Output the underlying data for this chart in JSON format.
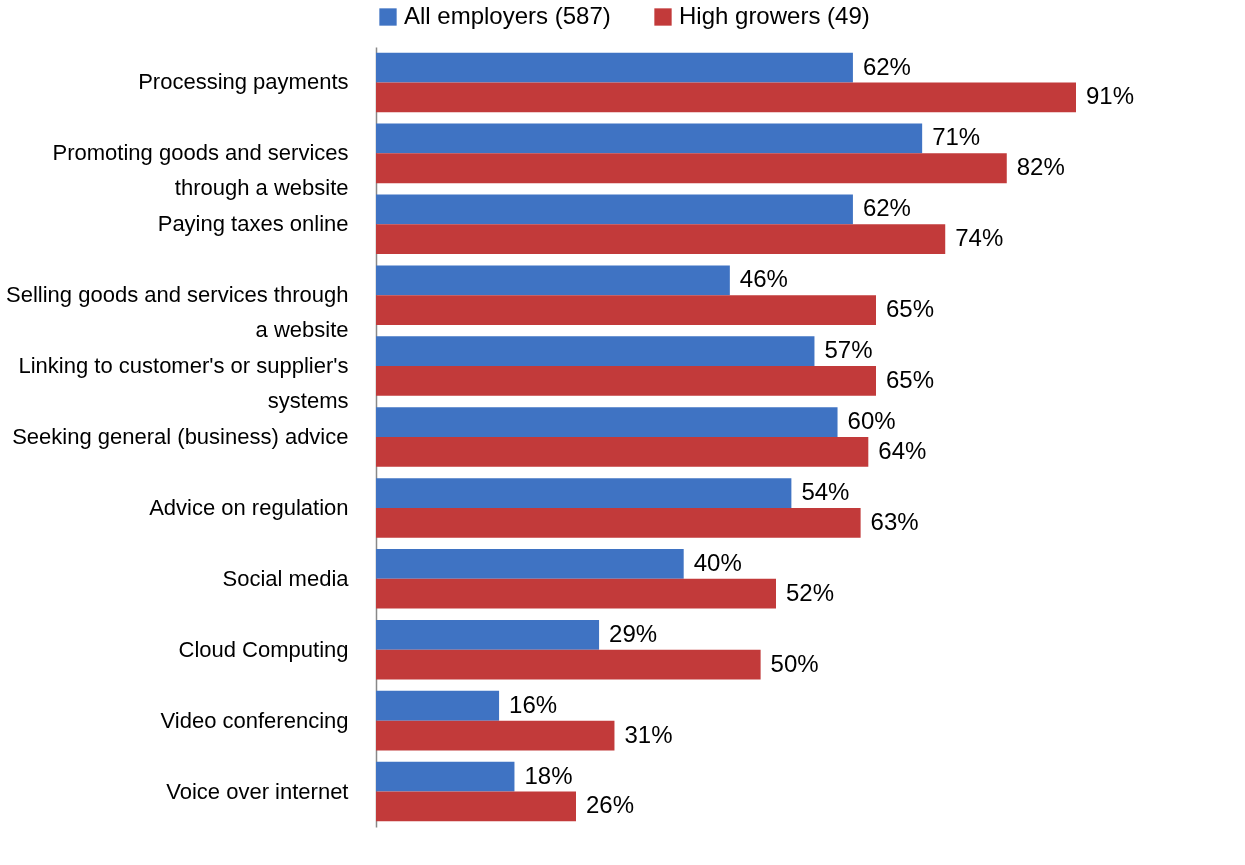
{
  "chart_data": {
    "type": "bar",
    "orientation": "horizontal",
    "legend": "top",
    "categories": [
      "Processing payments",
      "Promoting goods and services through a website",
      "Paying taxes online",
      "Selling goods and services through a website",
      "Linking to customer's or supplier's systems",
      "Seeking general (business) advice",
      "Advice on regulation",
      "Social media",
      "Cloud Computing",
      "Video conferencing",
      "Voice over internet"
    ],
    "series": [
      {
        "name": "All employers (587)",
        "color": "#3f73c3",
        "values": [
          62,
          71,
          62,
          46,
          57,
          60,
          54,
          40,
          29,
          16,
          18
        ],
        "value_labels": [
          "62%",
          "71%",
          "62%",
          "46%",
          "57%",
          "60%",
          "54%",
          "40%",
          "29%",
          "16%",
          "18%"
        ]
      },
      {
        "name": "High growers (49)",
        "color": "#c23a3a",
        "values": [
          91,
          82,
          74,
          65,
          65,
          64,
          63,
          52,
          50,
          31,
          26
        ],
        "value_labels": [
          "91%",
          "82%",
          "74%",
          "65%",
          "65%",
          "64%",
          "63%",
          "52%",
          "50%",
          "31%",
          "26%"
        ]
      }
    ]
  }
}
